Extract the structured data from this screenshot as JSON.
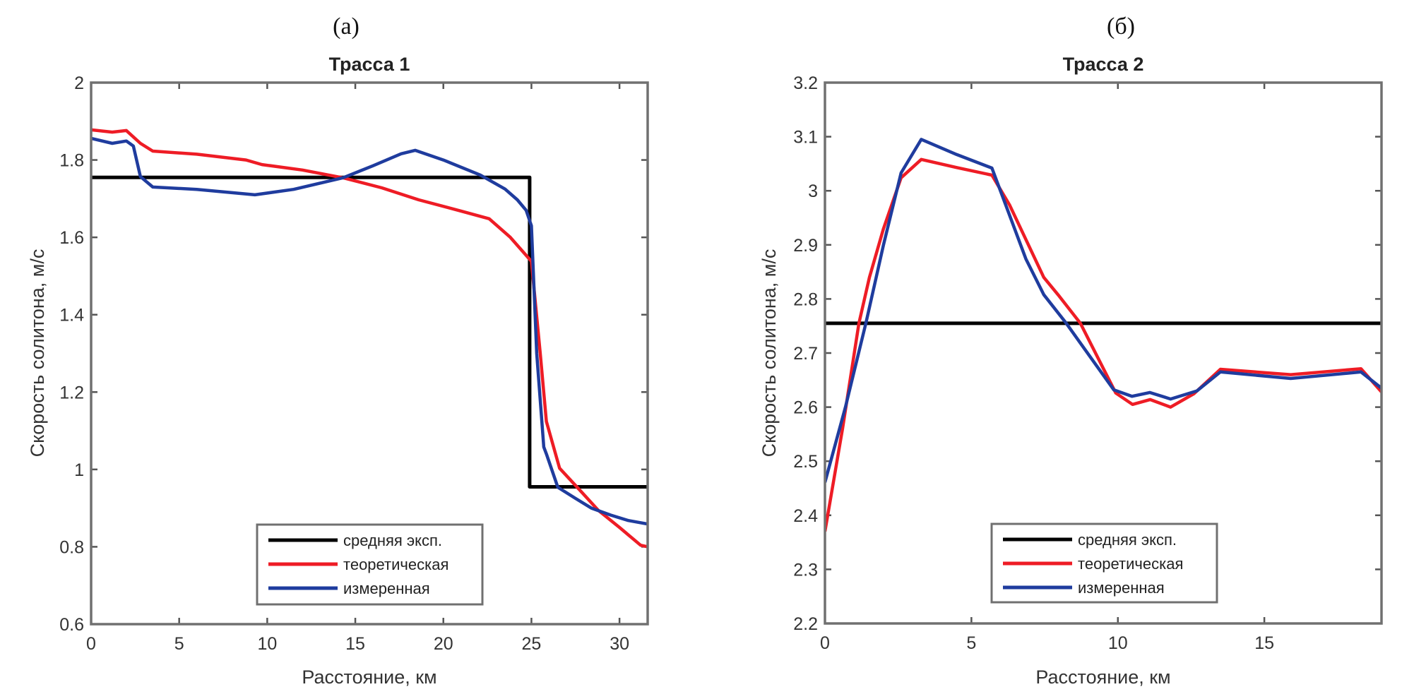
{
  "chart_data": [
    {
      "type": "line",
      "panel_label": "(a)",
      "title": "Трасса 1",
      "xlabel": "Расстояние, км",
      "ylabel": "Скорость солитона, м/с",
      "xlim": [
        0,
        31.6
      ],
      "ylim": [
        0.6,
        2.0
      ],
      "xticks": [
        0,
        5,
        10,
        15,
        20,
        25,
        30
      ],
      "xtick_labels": [
        "0",
        "5",
        "10",
        "15",
        "20",
        "25",
        "30"
      ],
      "yticks": [
        0.6,
        0.8,
        1.0,
        1.2,
        1.4,
        1.6,
        1.8,
        2.0
      ],
      "ytick_labels": [
        "0.6",
        "0.8",
        "1",
        "1.2",
        "1.4",
        "1.6",
        "1.8",
        "2"
      ],
      "grid": false,
      "legend_position": "bottom-center",
      "series": [
        {
          "name": "средняя эксп.",
          "color": "#000000",
          "x": [
            0,
            24.9,
            24.9,
            31.6
          ],
          "y": [
            1.755,
            1.755,
            0.955,
            0.955
          ]
        },
        {
          "name": "теоретическая",
          "color": "#ee1c25",
          "x": [
            0,
            1.2,
            2.0,
            2.8,
            3.5,
            6.0,
            8.8,
            9.7,
            12.0,
            14.3,
            16.5,
            18.6,
            21.0,
            22.6,
            23.8,
            25.0,
            25.5,
            25.85,
            26.6,
            27.7,
            28.8,
            30.0,
            31.2,
            31.6
          ],
          "y": [
            1.878,
            1.872,
            1.876,
            1.843,
            1.823,
            1.815,
            1.8,
            1.788,
            1.774,
            1.754,
            1.728,
            1.697,
            1.668,
            1.648,
            1.6,
            1.538,
            1.3,
            1.124,
            1.003,
            0.949,
            0.894,
            0.85,
            0.804,
            0.8
          ]
        },
        {
          "name": "измеренная",
          "color": "#1f3c9e",
          "x": [
            0,
            1.2,
            2.0,
            2.4,
            2.8,
            3.5,
            6.0,
            9.3,
            11.5,
            14.3,
            16.0,
            17.6,
            18.4,
            20.0,
            22.1,
            23.5,
            24.2,
            24.7,
            25.0,
            25.3,
            25.7,
            25.85,
            26.5,
            27.5,
            28.4,
            29.5,
            30.5,
            31.6
          ],
          "y": [
            1.856,
            1.843,
            1.849,
            1.836,
            1.757,
            1.73,
            1.724,
            1.71,
            1.724,
            1.754,
            1.785,
            1.816,
            1.825,
            1.8,
            1.761,
            1.725,
            1.697,
            1.67,
            1.63,
            1.3,
            1.058,
            1.04,
            0.954,
            0.925,
            0.9,
            0.882,
            0.868,
            0.859
          ]
        }
      ]
    },
    {
      "type": "line",
      "panel_label": "(б)",
      "title": "Трасса 2",
      "xlabel": "Расстояние, км",
      "ylabel": "Скорость солитона, м/с",
      "xlim": [
        0,
        19
      ],
      "ylim": [
        2.2,
        3.2
      ],
      "xticks": [
        0,
        5,
        10,
        15
      ],
      "xtick_labels": [
        "0",
        "5",
        "10",
        "15"
      ],
      "yticks": [
        2.2,
        2.3,
        2.4,
        2.5,
        2.6,
        2.7,
        2.8,
        2.9,
        3.0,
        3.1,
        3.2
      ],
      "ytick_labels": [
        "2.2",
        "2.3",
        "2.4",
        "2.5",
        "2.6",
        "2.7",
        "2.8",
        "2.9",
        "3",
        "3.1",
        "3.2"
      ],
      "grid": false,
      "legend_position": "bottom-center",
      "series": [
        {
          "name": "средняя эксп.",
          "color": "#000000",
          "x": [
            0,
            19
          ],
          "y": [
            2.755,
            2.755
          ]
        },
        {
          "name": "теоретическая",
          "color": "#ee1c25",
          "x": [
            0,
            0.6,
            1.16,
            1.52,
            2.0,
            2.6,
            3.29,
            4.5,
            5.7,
            6.3,
            7.47,
            8.0,
            8.72,
            9.93,
            10.5,
            11.1,
            11.8,
            12.6,
            13.5,
            15.9,
            18.3,
            19.0
          ],
          "y": [
            2.37,
            2.56,
            2.755,
            2.84,
            2.93,
            3.024,
            3.058,
            3.043,
            3.029,
            2.974,
            2.84,
            2.805,
            2.755,
            2.626,
            2.605,
            2.614,
            2.6,
            2.625,
            2.67,
            2.66,
            2.671,
            2.628
          ]
        },
        {
          "name": "измеренная",
          "color": "#1f3c9e",
          "x": [
            0,
            0.7,
            1.4,
            2.0,
            2.6,
            3.29,
            4.5,
            5.7,
            6.86,
            7.47,
            8.24,
            9.86,
            10.48,
            11.09,
            11.8,
            12.7,
            13.5,
            15.9,
            18.3,
            19.0
          ],
          "y": [
            2.461,
            2.6,
            2.756,
            2.9,
            3.033,
            3.095,
            3.067,
            3.042,
            2.874,
            2.808,
            2.755,
            2.632,
            2.62,
            2.627,
            2.615,
            2.63,
            2.665,
            2.653,
            2.665,
            2.635
          ]
        }
      ]
    }
  ]
}
